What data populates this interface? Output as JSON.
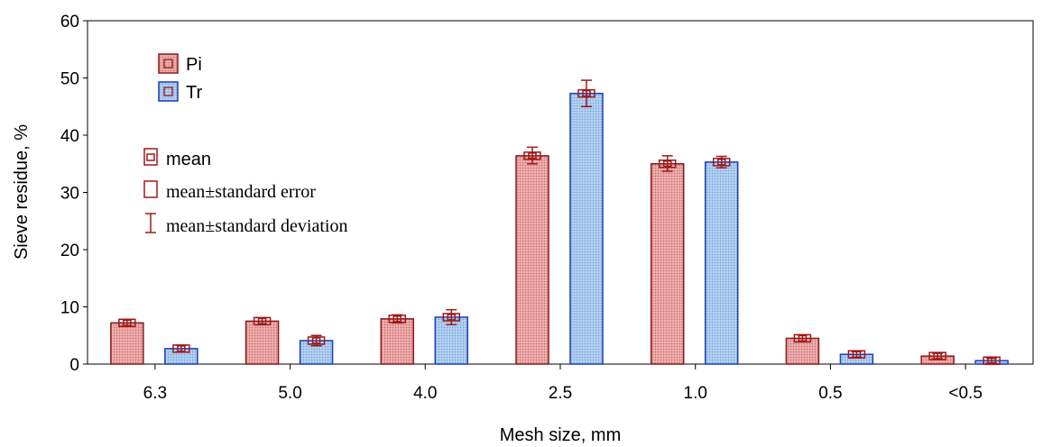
{
  "chart_data": {
    "type": "bar",
    "xlabel": "Mesh size, mm",
    "ylabel": "Sieve residue, %",
    "ylim": [
      0,
      60
    ],
    "yticks": [
      "0",
      "10",
      "20",
      "30",
      "40",
      "50",
      "60"
    ],
    "categories": [
      "6.3",
      "5.0",
      "4.0",
      "2.5",
      "1.0",
      "0.5",
      "<0.5"
    ],
    "series": [
      {
        "name": "Pi",
        "color": "#e8a0a0",
        "edge_color": "#8b1a1a",
        "values": [
          7.2,
          7.5,
          7.9,
          36.4,
          35.0,
          4.5,
          1.4
        ],
        "error_bars": [
          [
            6.6,
            7.8
          ],
          [
            6.9,
            8.1
          ],
          [
            7.2,
            8.6
          ],
          [
            35.0,
            37.9
          ],
          [
            33.7,
            36.4
          ],
          [
            3.9,
            5.1
          ],
          [
            0.9,
            1.9
          ]
        ]
      },
      {
        "name": "Tr",
        "color": "#a6c8ee",
        "edge_color": "#1c3fb5",
        "values": [
          2.7,
          4.1,
          8.2,
          47.3,
          35.3,
          1.7,
          0.6
        ],
        "error_bars": [
          [
            2.1,
            3.3
          ],
          [
            3.2,
            5.0
          ],
          [
            6.9,
            9.5
          ],
          [
            45.0,
            49.6
          ],
          [
            34.3,
            36.3
          ],
          [
            1.2,
            2.2
          ],
          [
            0.2,
            1.0
          ]
        ]
      }
    ],
    "legend": {
      "position": "top-left",
      "stat_items": [
        {
          "marker": "box-with-square",
          "label": "mean"
        },
        {
          "marker": "open-rect",
          "label": "mean±standard error"
        },
        {
          "marker": "i-bar",
          "label": "mean±standard deviation"
        }
      ]
    },
    "marker_color": "#a01818"
  }
}
